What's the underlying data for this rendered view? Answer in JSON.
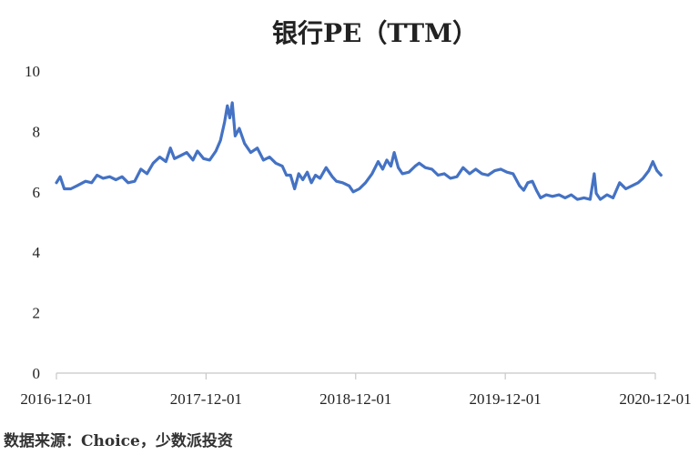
{
  "chart_data": {
    "type": "line",
    "title": "银行PE（TTM）",
    "xlabel": "",
    "ylabel": "",
    "ylim": [
      0,
      10
    ],
    "yticks": [
      0,
      2,
      4,
      6,
      8,
      10
    ],
    "x_range": [
      "2016-12-01",
      "2020-12-01"
    ],
    "xticks": [
      "2016-12-01",
      "2017-12-01",
      "2018-12-01",
      "2019-12-01",
      "2020-12-01"
    ],
    "grid": false,
    "legend": "none",
    "line_color": "#4472C4",
    "series": [
      {
        "values": [
          [
            "2016-12-01",
            6.3
          ],
          [
            "2016-12-10",
            6.5
          ],
          [
            "2016-12-20",
            6.1
          ],
          [
            "2017-01-05",
            6.1
          ],
          [
            "2017-01-20",
            6.2
          ],
          [
            "2017-02-10",
            6.35
          ],
          [
            "2017-02-25",
            6.3
          ],
          [
            "2017-03-10",
            6.55
          ],
          [
            "2017-03-25",
            6.45
          ],
          [
            "2017-04-10",
            6.5
          ],
          [
            "2017-04-25",
            6.4
          ],
          [
            "2017-05-10",
            6.5
          ],
          [
            "2017-05-25",
            6.3
          ],
          [
            "2017-06-10",
            6.35
          ],
          [
            "2017-06-25",
            6.75
          ],
          [
            "2017-07-10",
            6.6
          ],
          [
            "2017-07-25",
            6.95
          ],
          [
            "2017-08-10",
            7.15
          ],
          [
            "2017-08-25",
            7.0
          ],
          [
            "2017-09-05",
            7.45
          ],
          [
            "2017-09-15",
            7.1
          ],
          [
            "2017-09-30",
            7.2
          ],
          [
            "2017-10-15",
            7.3
          ],
          [
            "2017-10-30",
            7.05
          ],
          [
            "2017-11-10",
            7.35
          ],
          [
            "2017-11-25",
            7.1
          ],
          [
            "2017-12-10",
            7.05
          ],
          [
            "2017-12-25",
            7.35
          ],
          [
            "2018-01-05",
            7.7
          ],
          [
            "2018-01-15",
            8.3
          ],
          [
            "2018-01-22",
            8.85
          ],
          [
            "2018-01-28",
            8.45
          ],
          [
            "2018-02-03",
            8.95
          ],
          [
            "2018-02-10",
            7.85
          ],
          [
            "2018-02-20",
            8.1
          ],
          [
            "2018-03-05",
            7.6
          ],
          [
            "2018-03-20",
            7.3
          ],
          [
            "2018-04-05",
            7.45
          ],
          [
            "2018-04-20",
            7.05
          ],
          [
            "2018-05-05",
            7.15
          ],
          [
            "2018-05-20",
            6.95
          ],
          [
            "2018-06-05",
            6.85
          ],
          [
            "2018-06-15",
            6.55
          ],
          [
            "2018-06-25",
            6.55
          ],
          [
            "2018-07-05",
            6.1
          ],
          [
            "2018-07-15",
            6.6
          ],
          [
            "2018-07-25",
            6.4
          ],
          [
            "2018-08-05",
            6.65
          ],
          [
            "2018-08-15",
            6.3
          ],
          [
            "2018-08-25",
            6.55
          ],
          [
            "2018-09-05",
            6.45
          ],
          [
            "2018-09-20",
            6.8
          ],
          [
            "2018-10-05",
            6.5
          ],
          [
            "2018-10-15",
            6.35
          ],
          [
            "2018-10-30",
            6.3
          ],
          [
            "2018-11-15",
            6.2
          ],
          [
            "2018-11-25",
            6.0
          ],
          [
            "2018-12-10",
            6.1
          ],
          [
            "2018-12-25",
            6.3
          ],
          [
            "2019-01-10",
            6.6
          ],
          [
            "2019-01-25",
            7.0
          ],
          [
            "2019-02-05",
            6.75
          ],
          [
            "2019-02-15",
            7.05
          ],
          [
            "2019-02-25",
            6.85
          ],
          [
            "2019-03-05",
            7.3
          ],
          [
            "2019-03-15",
            6.8
          ],
          [
            "2019-03-25",
            6.6
          ],
          [
            "2019-04-10",
            6.65
          ],
          [
            "2019-04-25",
            6.85
          ],
          [
            "2019-05-05",
            6.95
          ],
          [
            "2019-05-20",
            6.8
          ],
          [
            "2019-06-05",
            6.75
          ],
          [
            "2019-06-20",
            6.55
          ],
          [
            "2019-07-05",
            6.6
          ],
          [
            "2019-07-20",
            6.45
          ],
          [
            "2019-08-05",
            6.5
          ],
          [
            "2019-08-20",
            6.8
          ],
          [
            "2019-09-05",
            6.6
          ],
          [
            "2019-09-20",
            6.75
          ],
          [
            "2019-10-05",
            6.6
          ],
          [
            "2019-10-20",
            6.55
          ],
          [
            "2019-11-05",
            6.7
          ],
          [
            "2019-11-20",
            6.75
          ],
          [
            "2019-12-05",
            6.65
          ],
          [
            "2019-12-20",
            6.6
          ],
          [
            "2020-01-05",
            6.2
          ],
          [
            "2020-01-15",
            6.05
          ],
          [
            "2020-01-25",
            6.3
          ],
          [
            "2020-02-05",
            6.35
          ],
          [
            "2020-02-15",
            6.05
          ],
          [
            "2020-02-25",
            5.8
          ],
          [
            "2020-03-10",
            5.9
          ],
          [
            "2020-03-25",
            5.85
          ],
          [
            "2020-04-10",
            5.9
          ],
          [
            "2020-04-25",
            5.8
          ],
          [
            "2020-05-10",
            5.9
          ],
          [
            "2020-05-25",
            5.75
          ],
          [
            "2020-06-10",
            5.8
          ],
          [
            "2020-06-25",
            5.75
          ],
          [
            "2020-07-05",
            6.6
          ],
          [
            "2020-07-10",
            5.95
          ],
          [
            "2020-07-20",
            5.75
          ],
          [
            "2020-08-05",
            5.9
          ],
          [
            "2020-08-20",
            5.8
          ],
          [
            "2020-09-05",
            6.3
          ],
          [
            "2020-09-20",
            6.1
          ],
          [
            "2020-10-05",
            6.2
          ],
          [
            "2020-10-20",
            6.3
          ],
          [
            "2020-11-01",
            6.45
          ],
          [
            "2020-11-15",
            6.7
          ],
          [
            "2020-11-25",
            7.0
          ],
          [
            "2020-12-05",
            6.7
          ],
          [
            "2020-12-15",
            6.55
          ]
        ]
      }
    ]
  },
  "source_text": "数据来源：Choice，少数派投资"
}
